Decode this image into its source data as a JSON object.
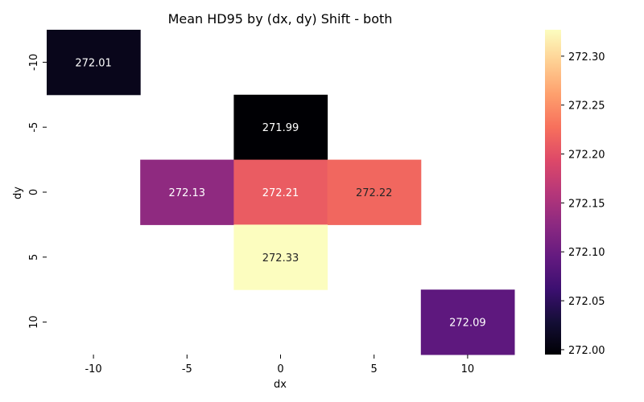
{
  "chart_data": {
    "type": "heatmap",
    "title": "Mean HD95 by (dx, dy) Shift - both",
    "xlabel": "dx",
    "ylabel": "dy",
    "x_categories": [
      "-10",
      "-5",
      "0",
      "5",
      "10"
    ],
    "y_categories": [
      "-10",
      "-5",
      "0",
      "5",
      "10"
    ],
    "cells": [
      {
        "dx": "-10",
        "dy": "-10",
        "value": 272.01,
        "label": "272.01"
      },
      {
        "dx": "0",
        "dy": "-5",
        "value": 271.99,
        "label": "271.99"
      },
      {
        "dx": "-5",
        "dy": "0",
        "value": 272.13,
        "label": "272.13"
      },
      {
        "dx": "0",
        "dy": "0",
        "value": 272.21,
        "label": "272.21"
      },
      {
        "dx": "5",
        "dy": "0",
        "value": 272.22,
        "label": "272.22"
      },
      {
        "dx": "0",
        "dy": "5",
        "value": 272.33,
        "label": "272.33"
      },
      {
        "dx": "10",
        "dy": "10",
        "value": 272.09,
        "label": "272.09"
      }
    ],
    "colorbar": {
      "colormap": "magma",
      "range": [
        271.995,
        272.327
      ],
      "ticks": [
        {
          "value": 272.0,
          "label": "272.00"
        },
        {
          "value": 272.05,
          "label": "272.05"
        },
        {
          "value": 272.1,
          "label": "272.10"
        },
        {
          "value": 272.15,
          "label": "272.15"
        },
        {
          "value": 272.2,
          "label": "272.20"
        },
        {
          "value": 272.25,
          "label": "272.25"
        },
        {
          "value": 272.3,
          "label": "272.30"
        }
      ]
    },
    "grid": false,
    "legend": "colorbar-right"
  }
}
